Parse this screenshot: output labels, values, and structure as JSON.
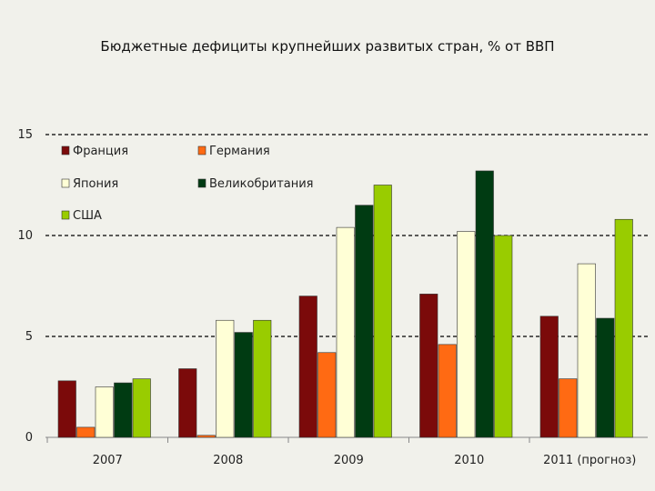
{
  "chart_data": {
    "type": "bar",
    "title": "Бюджетные дефициты крупнейших развитых стран, % от ВВП",
    "xlabel": "",
    "ylabel": "",
    "ylim": [
      0,
      15
    ],
    "yticks": [
      "0",
      "5",
      "10",
      "15"
    ],
    "grid": true,
    "legend_position": "top-left",
    "categories": [
      "2007",
      "2008",
      "2009",
      "2010",
      "2011 (прогноз)"
    ],
    "series": [
      {
        "name": "Франция",
        "color": "#7b0a0a",
        "values": [
          2.8,
          3.4,
          7.0,
          7.1,
          6.0
        ]
      },
      {
        "name": "Германия",
        "color": "#ff6a13",
        "values": [
          0.5,
          0.1,
          4.2,
          4.6,
          2.9
        ]
      },
      {
        "name": "Япония",
        "color": "#ffffd6",
        "values": [
          2.5,
          5.8,
          10.4,
          10.2,
          8.6
        ]
      },
      {
        "name": "Великобритания",
        "color": "#003b12",
        "values": [
          2.7,
          5.2,
          11.5,
          13.2,
          5.9
        ]
      },
      {
        "name": "США",
        "color": "#99cc00",
        "values": [
          2.9,
          5.8,
          12.5,
          10.0,
          10.8
        ]
      }
    ]
  }
}
